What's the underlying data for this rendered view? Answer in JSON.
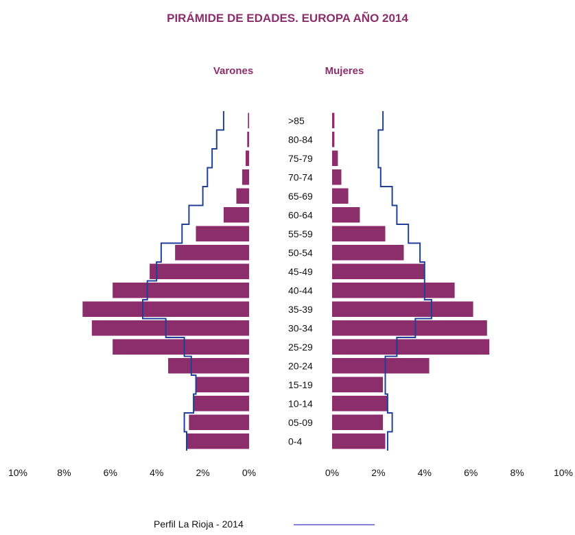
{
  "chart_data": {
    "type": "bar",
    "orientation": "horizontal-population-pyramid",
    "title": "PIRÁMIDE DE EDADES. EUROPA AÑO 2014",
    "left_panel_label": "Varones",
    "right_panel_label": "Mujeres",
    "categories": [
      ">85",
      "80-84",
      "75-79",
      "70-74",
      "65-69",
      "60-64",
      "55-59",
      "50-54",
      "45-49",
      "40-44",
      "35-39",
      "30-34",
      "25-29",
      "20-24",
      "15-19",
      "10-14",
      "05-09",
      "0-4"
    ],
    "series": [
      {
        "name": "Varones",
        "side": "left",
        "values": [
          0.05,
          0.08,
          0.15,
          0.3,
          0.55,
          1.1,
          2.3,
          3.2,
          4.3,
          5.9,
          7.2,
          6.8,
          5.9,
          3.5,
          2.3,
          2.4,
          2.6,
          2.7
        ]
      },
      {
        "name": "Mujeres",
        "side": "right",
        "values": [
          0.1,
          0.1,
          0.25,
          0.4,
          0.7,
          1.2,
          2.3,
          3.1,
          4.0,
          5.3,
          6.1,
          6.7,
          6.8,
          4.2,
          2.2,
          2.4,
          2.2,
          2.3
        ]
      },
      {
        "name": "Perfil La Rioja - 2014",
        "type": "line",
        "left_values": [
          1.1,
          1.4,
          1.6,
          1.8,
          2.0,
          2.6,
          2.9,
          3.8,
          4.0,
          4.4,
          4.6,
          3.6,
          2.8,
          2.5,
          2.3,
          2.4,
          2.8,
          2.7
        ],
        "right_values": [
          2.2,
          2.0,
          2.0,
          2.1,
          2.6,
          2.8,
          3.3,
          3.8,
          4.0,
          4.0,
          4.3,
          3.6,
          2.8,
          2.3,
          2.3,
          2.4,
          2.6,
          2.4
        ]
      }
    ],
    "axis_ticks_left": [
      "10%",
      "8%",
      "6%",
      "4%",
      "2%",
      "0%"
    ],
    "axis_ticks_right": [
      "0%",
      "2%",
      "4%",
      "6%",
      "8%",
      "10%"
    ],
    "xlim": [
      0,
      10
    ],
    "grid": false,
    "legend_label": "Perfil La Rioja - 2014",
    "legend_position": "bottom",
    "colors": {
      "bars": "#8b2e6b",
      "line": "#1f3f99",
      "legend_line": "#8a80d8",
      "title": "#8b2e6b"
    }
  }
}
